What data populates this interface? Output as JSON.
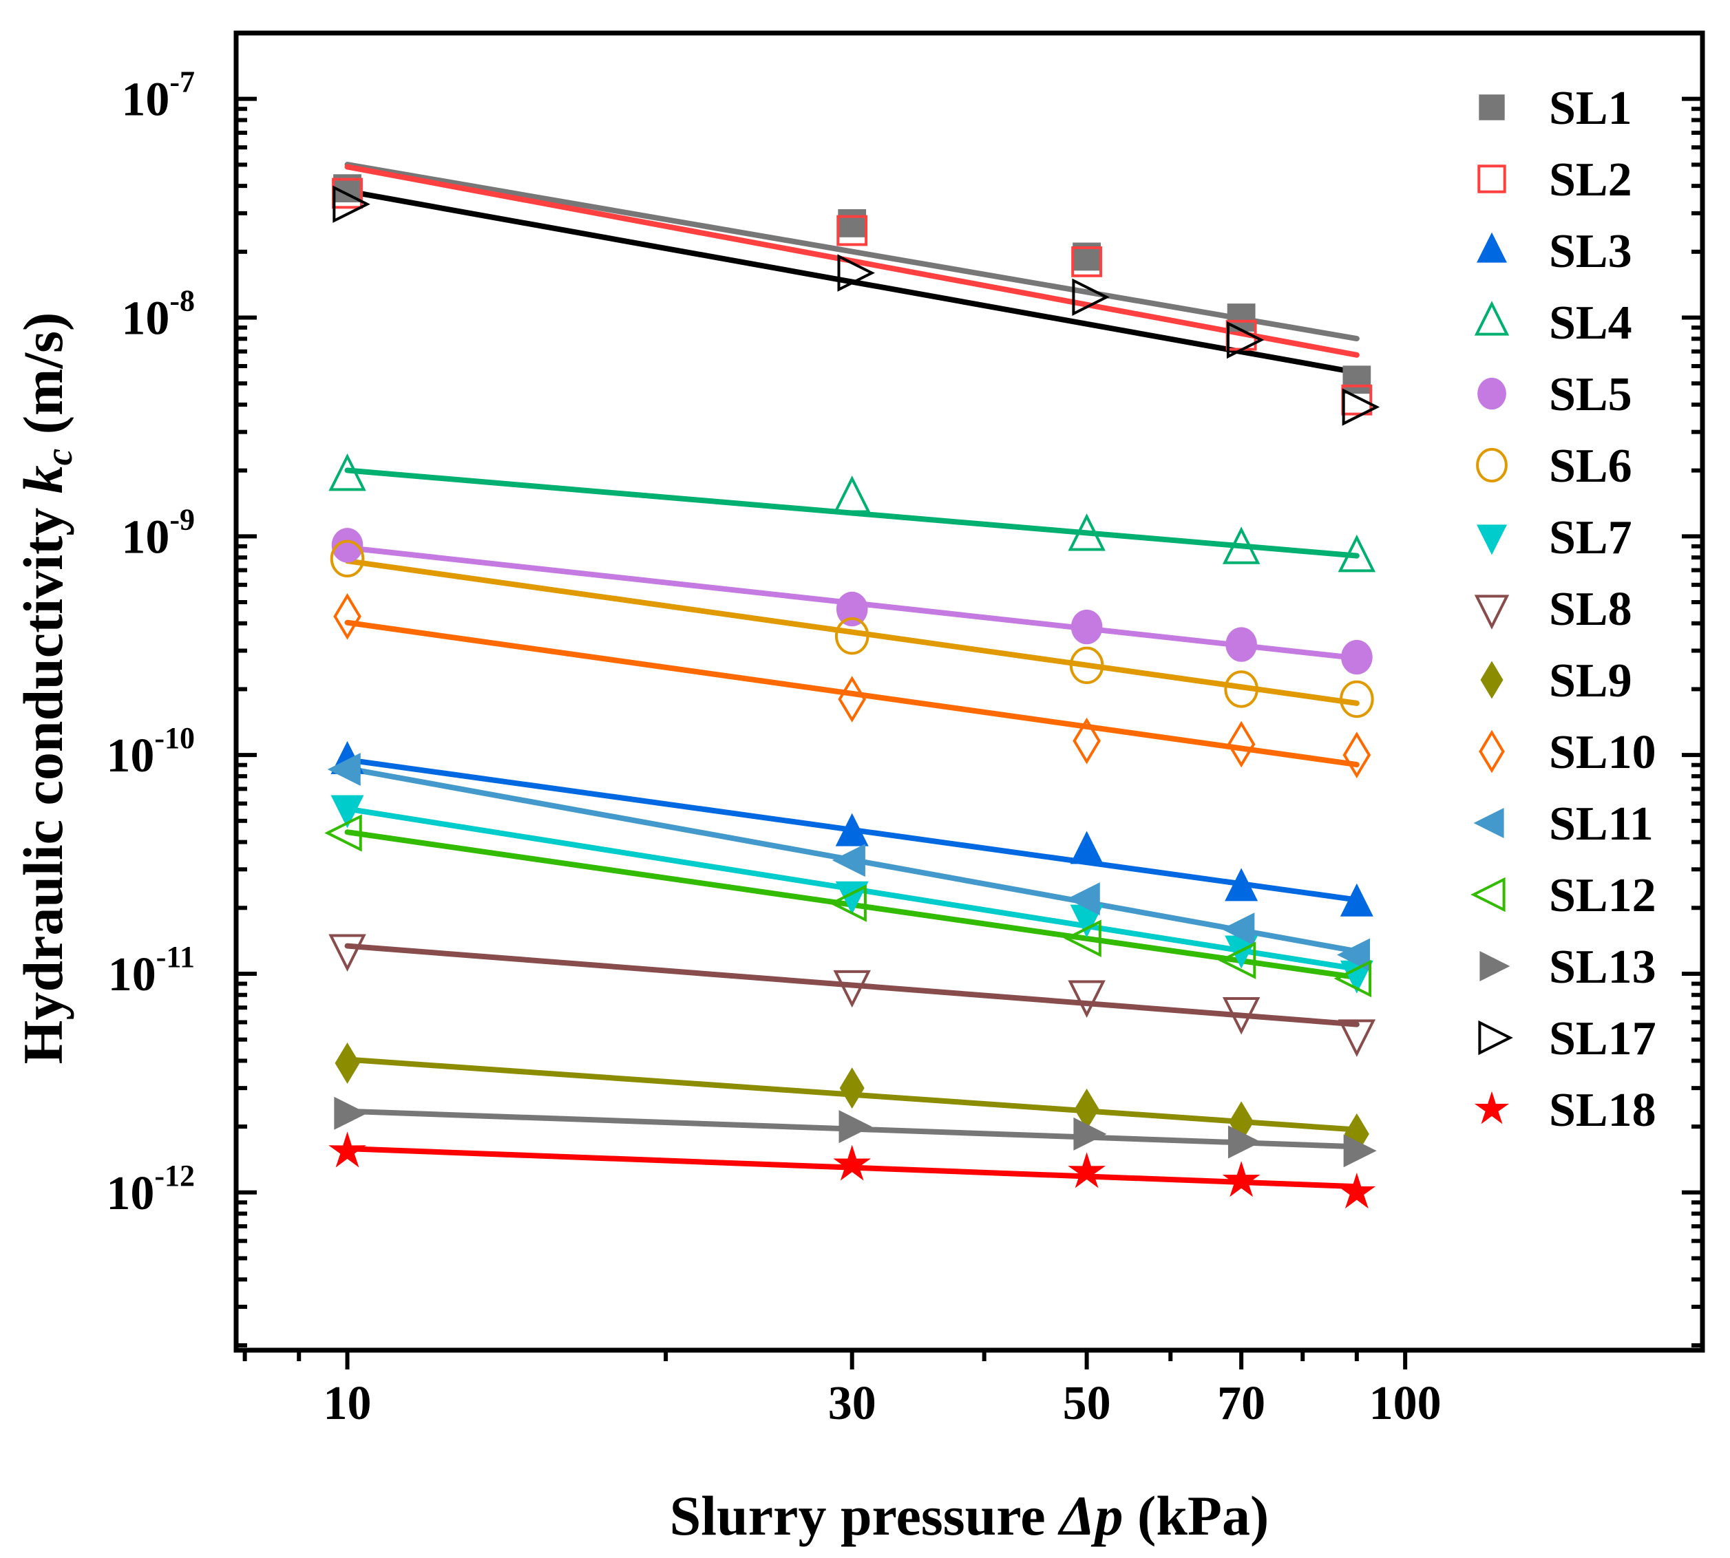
{
  "chart_data": {
    "type": "scatter",
    "title": "",
    "xlabel": {
      "prefix": "Slurry pressure ",
      "var": "Δp",
      "suffix": " (kPa)"
    },
    "ylabel": {
      "prefix": "Hydraulic conductivity ",
      "var": "k",
      "sub": "c",
      "suffix": " (m/s)"
    },
    "xscale": "log",
    "yscale": "log",
    "xlim": [
      7.85,
      191
    ],
    "ylim": [
      1.9e-13,
      2e-07
    ],
    "xticks": [
      10,
      30,
      50,
      70,
      100
    ],
    "xtick_labels": [
      "10",
      "30",
      "50",
      "70",
      "100"
    ],
    "yticks": [
      1e-12,
      1e-11,
      1e-10,
      1e-09,
      1e-08,
      1e-07
    ],
    "ytick_labels": [
      {
        "base": "10",
        "exp": "-12"
      },
      {
        "base": "10",
        "exp": "-11"
      },
      {
        "base": "10",
        "exp": "-10"
      },
      {
        "base": "10",
        "exp": "-9"
      },
      {
        "base": "10",
        "exp": "-8"
      },
      {
        "base": "10",
        "exp": "-7"
      }
    ],
    "grid": false,
    "legend_position": "right",
    "x": [
      10,
      30,
      50,
      70,
      90
    ],
    "series": [
      {
        "name": "SL1",
        "marker": "square",
        "filled": true,
        "color": "#777777",
        "values": [
          3.9e-08,
          2.7e-08,
          1.9e-08,
          1e-08,
          5.2e-09
        ]
      },
      {
        "name": "SL2",
        "marker": "square",
        "filled": false,
        "color": "#ff4040",
        "values": [
          3.7e-08,
          2.5e-08,
          1.8e-08,
          8.3e-09,
          4.2e-09
        ]
      },
      {
        "name": "SL3",
        "marker": "triangle-up",
        "filled": true,
        "color": "#0068e0",
        "values": [
          9.4e-11,
          4.4e-11,
          3.65e-11,
          2.47e-11,
          2.1e-11
        ]
      },
      {
        "name": "SL4",
        "marker": "triangle-up",
        "filled": false,
        "color": "#00b070",
        "values": [
          1.88e-09,
          1.49e-09,
          1e-09,
          8.7e-10,
          8e-10
        ]
      },
      {
        "name": "SL5",
        "marker": "circle",
        "filled": true,
        "color": "#c47ae0",
        "values": [
          9.1e-10,
          4.65e-10,
          3.85e-10,
          3.2e-10,
          2.8e-10
        ]
      },
      {
        "name": "SL6",
        "marker": "circle",
        "filled": false,
        "color": "#e09a00",
        "values": [
          7.9e-10,
          3.5e-10,
          2.57e-10,
          2e-10,
          1.8e-10
        ]
      },
      {
        "name": "SL7",
        "marker": "triangle-down",
        "filled": true,
        "color": "#00cccc",
        "values": [
          5.7e-11,
          2.3e-11,
          1.8e-11,
          1.3e-11,
          1e-11
        ]
      },
      {
        "name": "SL8",
        "marker": "triangle-down",
        "filled": false,
        "color": "#884c4c",
        "values": [
          1.3e-11,
          8.9e-12,
          8e-12,
          6.7e-12,
          5.3e-12
        ]
      },
      {
        "name": "SL9",
        "marker": "diamond",
        "filled": true,
        "color": "#8c8c00",
        "values": [
          3.9e-12,
          3e-12,
          2.4e-12,
          2.1e-12,
          1.85e-12
        ]
      },
      {
        "name": "SL10",
        "marker": "diamond",
        "filled": false,
        "color": "#ff6a00",
        "values": [
          4.3e-10,
          1.8e-10,
          1.16e-10,
          1.12e-10,
          1e-10
        ]
      },
      {
        "name": "SL11",
        "marker": "triangle-left",
        "filled": true,
        "color": "#4499cc",
        "values": [
          8.6e-11,
          3.3e-11,
          2.2e-11,
          1.6e-11,
          1.22e-11
        ]
      },
      {
        "name": "SL12",
        "marker": "triangle-left",
        "filled": false,
        "color": "#33bb00",
        "values": [
          4.4e-11,
          2.1e-11,
          1.45e-11,
          1.15e-11,
          9.5e-12
        ]
      },
      {
        "name": "SL13",
        "marker": "triangle-right",
        "filled": true,
        "color": "#777777",
        "values": [
          2.3e-12,
          2e-12,
          1.85e-12,
          1.7e-12,
          1.55e-12
        ]
      },
      {
        "name": "SL17",
        "marker": "triangle-right",
        "filled": false,
        "color": "#000000",
        "values": [
          3.3e-08,
          1.6e-08,
          1.24e-08,
          7.9e-09,
          3.9e-09
        ]
      },
      {
        "name": "SL18",
        "marker": "star",
        "filled": true,
        "color": "#ff0000",
        "values": [
          1.54e-12,
          1.34e-12,
          1.24e-12,
          1.13e-12,
          1e-12
        ]
      }
    ]
  }
}
